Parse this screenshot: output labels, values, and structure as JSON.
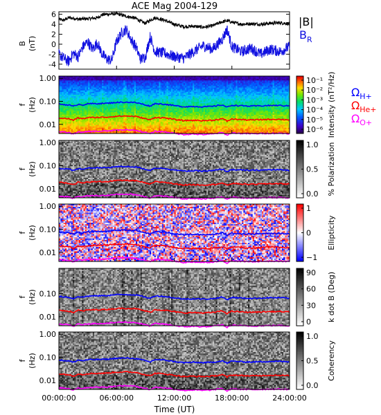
{
  "title": "ACE Mag 2004-129",
  "x_axis": {
    "ticks": [
      "00:00:00",
      "06:00:00",
      "12:00:00",
      "18:00:00",
      "24:00:00"
    ],
    "label": "Time (UT)"
  },
  "colors": {
    "btot": "#000000",
    "br": "#1010e0",
    "h_plus": "#0000ff",
    "he_plus": "#ff0000",
    "o_plus": "#ff00ff"
  },
  "chart_data": [
    {
      "type": "line",
      "ylabel_top": "B",
      "ylabel_bottom": "(nT)",
      "ylim": [
        -5,
        6.5
      ],
      "yticks": [
        "6",
        "4",
        "2",
        "0",
        "-2",
        "-4"
      ],
      "xlim_hours": [
        0,
        24
      ],
      "series": [
        {
          "name": "|B|",
          "color": "#000000",
          "x_hours": [
            0,
            0.5,
            1,
            1.5,
            2,
            3,
            4,
            4.5,
            5,
            6,
            7,
            8,
            8.5,
            9,
            9.5,
            10,
            11,
            12,
            13,
            14,
            15,
            16,
            17,
            17.5,
            18,
            19,
            20,
            21,
            22,
            23,
            24
          ],
          "values": [
            5.0,
            4.8,
            5.3,
            5.2,
            5.0,
            5.1,
            5.3,
            5.9,
            6.0,
            6.1,
            5.6,
            5.2,
            4.6,
            4.2,
            4.8,
            5.3,
            4.8,
            4.0,
            3.5,
            3.6,
            3.4,
            3.7,
            4.5,
            4.7,
            4.4,
            4.0,
            4.1,
            4.0,
            4.2,
            4.3,
            4.1
          ]
        },
        {
          "name": "B_R",
          "color": "#1010e0",
          "x_hours": [
            0,
            0.5,
            1,
            1.5,
            2,
            2.5,
            3,
            3.5,
            4,
            4.5,
            5,
            5.5,
            6,
            6.5,
            7,
            7.5,
            8,
            8.5,
            9,
            9.5,
            10,
            11,
            12,
            13,
            14,
            15,
            16,
            17,
            17.5,
            18,
            19,
            20,
            21,
            22,
            23,
            24
          ],
          "values": [
            -2.0,
            -2.8,
            -3.5,
            -1.8,
            -2.5,
            -0.5,
            0.5,
            -1.0,
            0.3,
            -2.0,
            -3.0,
            -3.2,
            0.5,
            2.2,
            3.0,
            1.0,
            -0.5,
            -3.0,
            -2.5,
            1.5,
            -1.5,
            -1.8,
            -2.5,
            -2.8,
            -1.5,
            -0.3,
            -1.0,
            1.0,
            3.0,
            -0.5,
            -1.5,
            -0.8,
            -2.0,
            -1.0,
            -1.5,
            -0.5
          ]
        }
      ]
    },
    {
      "type": "heatmap",
      "ylabel_top": "f",
      "ylabel_bottom": "(Hz)",
      "yticks": [
        "1.00",
        "0.10",
        "0.01"
      ],
      "colorbar_label": "Intensity (nT²/Hz)",
      "colorbar_ticks": [
        "10⁻¹",
        "10⁻²",
        "10⁻³",
        "10⁻⁴",
        "10⁻⁵",
        "10⁻⁶"
      ],
      "colormap": "rainbow"
    },
    {
      "type": "heatmap",
      "ylabel_top": "f",
      "ylabel_bottom": "(Hz)",
      "yticks": [
        "1.00",
        "0.10",
        "0.01"
      ],
      "colorbar_label": "% Polarization",
      "colorbar_ticks": [
        "1.0",
        "0.5",
        "0.0"
      ],
      "colormap": "gray"
    },
    {
      "type": "heatmap",
      "ylabel_top": "f",
      "ylabel_bottom": "(Hz)",
      "yticks": [
        "1.00",
        "0.10",
        "0.01"
      ],
      "colorbar_label": "Ellipticity",
      "colorbar_ticks": [
        "1",
        "0",
        "−1"
      ],
      "colormap": "bluewhitered"
    },
    {
      "type": "heatmap",
      "ylabel_top": "f",
      "ylabel_bottom": "(Hz)",
      "yticks": [
        "0.10",
        "0.01"
      ],
      "colorbar_label": "k dot B (Deg)",
      "colorbar_ticks": [
        "90",
        "60",
        "30",
        "0"
      ],
      "colormap": "gray"
    },
    {
      "type": "heatmap",
      "ylabel_top": "f",
      "ylabel_bottom": "(Hz)",
      "yticks": [
        "1.00",
        "0.10",
        "0.01"
      ],
      "colorbar_label": "Coherency",
      "colorbar_ticks": [
        "1.0",
        "0.5",
        "0.0"
      ],
      "colormap": "gray"
    }
  ],
  "gyro_lines": {
    "x_hours": [
      0,
      1,
      1.5,
      2,
      2.5,
      3,
      4,
      5,
      6,
      7,
      8,
      9,
      9.5,
      10,
      11,
      12,
      13,
      14,
      15,
      16,
      17,
      17.5,
      18,
      19,
      20,
      21,
      22,
      23,
      24
    ],
    "h_plus_hz": [
      0.075,
      0.07,
      0.06,
      0.075,
      0.07,
      0.078,
      0.08,
      0.082,
      0.09,
      0.092,
      0.088,
      0.07,
      0.062,
      0.08,
      0.075,
      0.065,
      0.058,
      0.06,
      0.058,
      0.06,
      0.07,
      0.055,
      0.068,
      0.064,
      0.062,
      0.064,
      0.066,
      0.066,
      0.063
    ],
    "he_plus_hz": [
      0.019,
      0.0175,
      0.015,
      0.019,
      0.0175,
      0.0195,
      0.02,
      0.0205,
      0.0225,
      0.023,
      0.022,
      0.0175,
      0.0155,
      0.02,
      0.019,
      0.0163,
      0.0145,
      0.015,
      0.0145,
      0.015,
      0.0175,
      0.0138,
      0.017,
      0.016,
      0.0155,
      0.016,
      0.0165,
      0.0165,
      0.0158
    ],
    "o_plus_hz": [
      0.0047,
      0.0044,
      0.0038,
      0.0047,
      0.0044,
      0.0049,
      0.005,
      0.0051,
      0.0056,
      0.0058,
      0.0055,
      0.0044,
      0.0039,
      0.005,
      0.0047,
      0.0041,
      0.0036,
      0.0038,
      0.0036,
      0.0038,
      0.0044,
      0.0034,
      0.0043,
      0.004,
      0.0039,
      0.004,
      0.0041,
      0.0041,
      0.004
    ]
  },
  "legend": {
    "btot": "|B|",
    "br_main": "B",
    "br_sub": "R",
    "h_main": "Ω",
    "h_sub": "H+",
    "he_main": "Ω",
    "he_sub": "He+",
    "o_main": "Ω",
    "o_sub": "O+"
  }
}
